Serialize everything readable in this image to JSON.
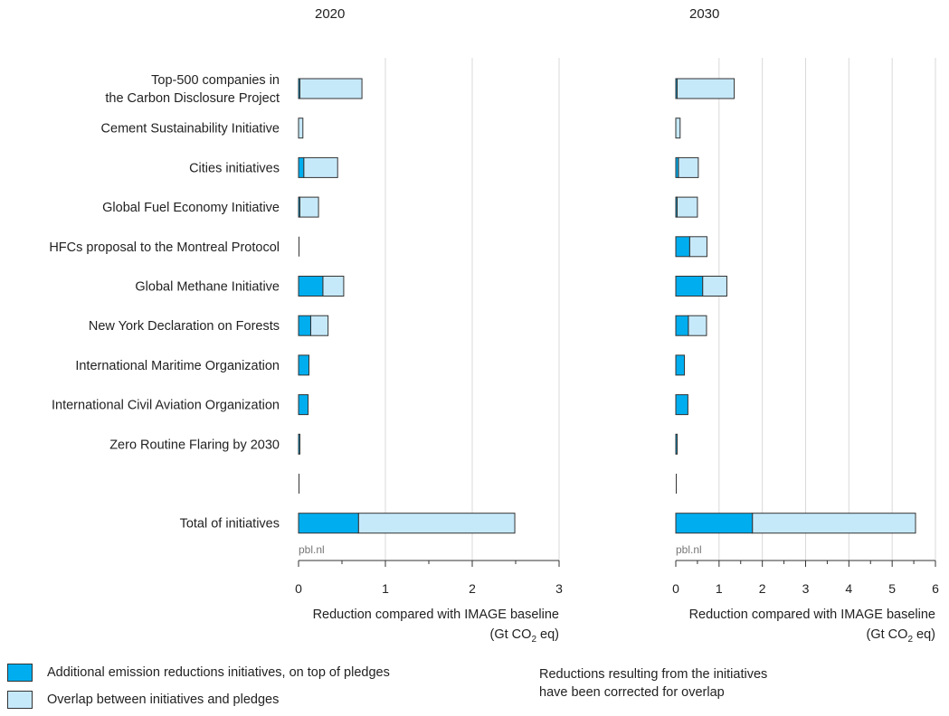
{
  "chart_data": [
    {
      "type": "bar",
      "title": "2020",
      "categories": [
        "Top-500 companies in\nthe Carbon Disclosure Project",
        "Cement Sustainability Initiative",
        "Cities initiatives",
        "Global Fuel Economy Initiative",
        "HFCs proposal to the Montreal Protocol",
        "Global Methane Initiative",
        "New York Declaration on Forests",
        "International Maritime Organization",
        "International Civil Aviation Organization",
        "Zero Routine Flaring by 2030",
        "",
        "Total of initiatives"
      ],
      "series": [
        {
          "name": "Additional emission reductions initiatives, on top of pledges",
          "values": [
            0.01,
            0.0,
            0.06,
            0.01,
            0.0,
            0.28,
            0.14,
            0.12,
            0.11,
            0.01,
            0.0,
            0.69
          ]
        },
        {
          "name": "Overlap between initiatives and pledges",
          "values": [
            0.72,
            0.05,
            0.39,
            0.22,
            0.0,
            0.24,
            0.2,
            0.0,
            0.0,
            0.0,
            0.0,
            1.8
          ]
        }
      ],
      "xlabel": "Reduction compared with IMAGE baseline",
      "xunit_prefix": "(Gt CO",
      "xunit_sub": "2",
      "xunit_suffix": " eq)",
      "xticks": [
        "0",
        "1",
        "2",
        "3"
      ],
      "xlim": [
        0,
        3
      ],
      "source": "pbl.nl",
      "grid": true
    },
    {
      "type": "bar",
      "title": "2030",
      "series": [
        {
          "name": "Additional emission reductions initiatives, on top of pledges",
          "values": [
            0.01,
            0.0,
            0.06,
            0.01,
            0.32,
            0.62,
            0.29,
            0.2,
            0.28,
            0.03,
            0.0,
            1.77
          ]
        },
        {
          "name": "Overlap between initiatives and pledges",
          "values": [
            1.34,
            0.1,
            0.46,
            0.49,
            0.4,
            0.56,
            0.42,
            0.0,
            0.0,
            0.0,
            0.0,
            3.77
          ]
        }
      ],
      "xlabel": "Reduction compared with IMAGE baseline",
      "xunit_prefix": "(Gt CO",
      "xunit_sub": "2",
      "xunit_suffix": " eq)",
      "xticks": [
        "0",
        "1",
        "2",
        "3",
        "4",
        "5",
        "6"
      ],
      "xlim": [
        0,
        6
      ],
      "source": "pbl.nl",
      "grid": true
    }
  ],
  "colors": {
    "additional": "#00aeef",
    "overlap": "#c6e9fa",
    "grid": "#d9d9d9",
    "axis": "#333333"
  },
  "legend": {
    "additional_label": "Additional emission reductions initiatives, on top of pledges",
    "overlap_label": "Overlap between initiatives and pledges"
  },
  "note": {
    "line1": "Reductions resulting from the initiatives",
    "line2": "have been corrected for overlap"
  }
}
